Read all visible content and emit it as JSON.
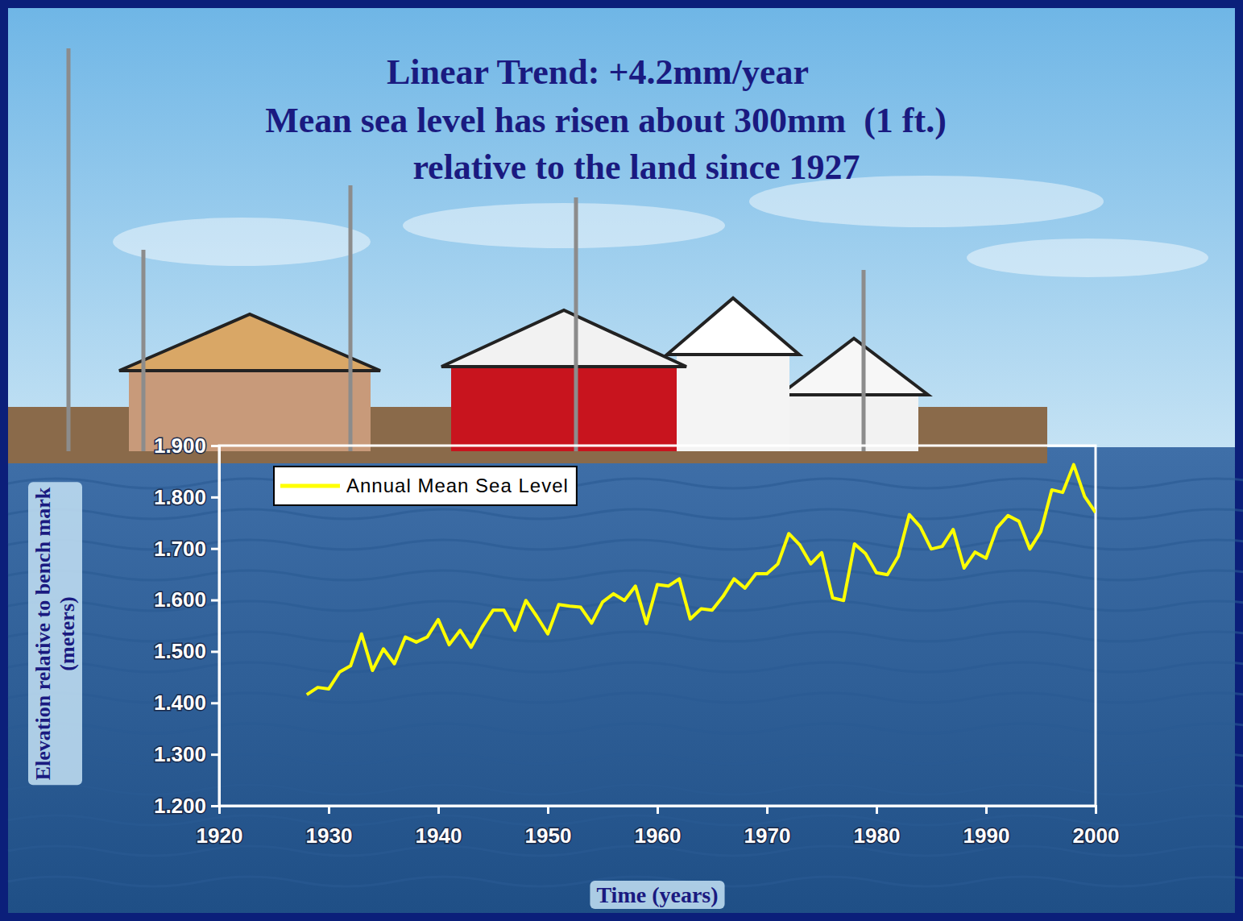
{
  "chart_data": {
    "type": "line",
    "title": "Linear Trend: +4.2mm/year",
    "subtitle": [
      "Mean sea level has risen about 300mm  (1 ft.)",
      "relative to the land since 1927"
    ],
    "xlabel": "Time (years)",
    "ylabel": "Elevation relative to bench mark (meters)",
    "x": [
      1928,
      1929,
      1930,
      1931,
      1932,
      1933,
      1934,
      1935,
      1936,
      1937,
      1938,
      1939,
      1940,
      1941,
      1942,
      1943,
      1944,
      1945,
      1946,
      1947,
      1948,
      1949,
      1950,
      1951,
      1952,
      1953,
      1954,
      1955,
      1956,
      1957,
      1958,
      1959,
      1960,
      1961,
      1962,
      1963,
      1964,
      1965,
      1966,
      1967,
      1968,
      1969,
      1970,
      1971,
      1972,
      1973,
      1974,
      1975,
      1976,
      1977,
      1978,
      1979,
      1980,
      1981,
      1982,
      1983,
      1984,
      1985,
      1986,
      1987,
      1988,
      1989,
      1990,
      1991,
      1992,
      1993,
      1994,
      1995,
      1996,
      1997,
      1998,
      1999,
      2000
    ],
    "series": [
      {
        "name": "Annual Mean Sea Level",
        "color": "#ffff00",
        "values": [
          1.416,
          1.43,
          1.427,
          1.46,
          1.472,
          1.534,
          1.463,
          1.505,
          1.476,
          1.528,
          1.518,
          1.528,
          1.562,
          1.513,
          1.541,
          1.508,
          1.547,
          1.58,
          1.58,
          1.541,
          1.599,
          1.568,
          1.534,
          1.591,
          1.588,
          1.586,
          1.555,
          1.596,
          1.612,
          1.599,
          1.627,
          1.554,
          1.63,
          1.627,
          1.641,
          1.563,
          1.583,
          1.58,
          1.607,
          1.641,
          1.623,
          1.651,
          1.651,
          1.67,
          1.729,
          1.707,
          1.67,
          1.692,
          1.604,
          1.599,
          1.709,
          1.69,
          1.653,
          1.649,
          1.685,
          1.766,
          1.742,
          1.699,
          1.704,
          1.737,
          1.662,
          1.693,
          1.681,
          1.74,
          1.764,
          1.753,
          1.699,
          1.733,
          1.814,
          1.809,
          1.863,
          1.801,
          1.77
        ]
      }
    ],
    "xlim": [
      1920,
      2000
    ],
    "xticks": [
      1920,
      1930,
      1940,
      1950,
      1960,
      1970,
      1980,
      1990,
      2000
    ],
    "ylim": [
      1.2,
      1.9
    ],
    "yticks": [
      {
        "value": 1.2,
        "label": "1.200"
      },
      {
        "value": 1.3,
        "label": "1.300"
      },
      {
        "value": 1.4,
        "label": "1.400"
      },
      {
        "value": 1.5,
        "label": "1.500"
      },
      {
        "value": 1.6,
        "label": "1.600"
      },
      {
        "value": 1.7,
        "label": "1.700"
      },
      {
        "value": 1.8,
        "label": "1.800"
      },
      {
        "value": 1.9,
        "label": "1.900"
      }
    ],
    "grid": false,
    "legend": "upper left"
  }
}
